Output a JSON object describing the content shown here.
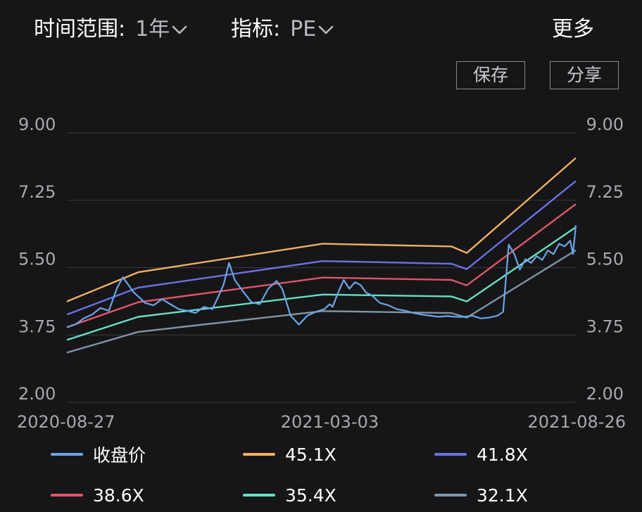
{
  "header": {
    "range_label": "时间范围:",
    "range_value": "1年",
    "metric_label": "指标:",
    "metric_value": "PE",
    "more_label": "更多"
  },
  "actions": {
    "save_label": "保存",
    "share_label": "分享"
  },
  "colors": {
    "background": "#161618",
    "grid": "#3a3a3d",
    "axis_text": "#a9a9ad",
    "close": "#6aa6e6",
    "band_45": "#f0b060",
    "band_41": "#6a72e0",
    "band_38": "#e0556a",
    "band_35": "#66e0c4",
    "band_32": "#7f96a8"
  },
  "chart_data": {
    "type": "line",
    "title": "",
    "xlabel": "",
    "ylabel": "",
    "ylim": [
      2.0,
      9.0
    ],
    "y_ticks": [
      "9.00",
      "7.25",
      "5.50",
      "3.75",
      "2.00"
    ],
    "x_ticks": [
      "2020-08-27",
      "2021-03-03",
      "2021-08-26"
    ],
    "x_range": [
      "2020-08-27",
      "2021-08-26"
    ],
    "grid": true,
    "legend_position": "bottom",
    "bands": [
      {
        "name": "45.1X",
        "color_key": "band_45",
        "x": [
          "2020-08-27",
          "2020-10-17",
          "2021-02-26",
          "2021-05-29",
          "2021-06-09",
          "2021-08-26"
        ],
        "y": [
          4.62,
          5.38,
          6.12,
          6.05,
          5.88,
          8.35
        ]
      },
      {
        "name": "41.8X",
        "color_key": "band_41",
        "x": [
          "2020-08-27",
          "2020-10-17",
          "2021-02-26",
          "2021-05-29",
          "2021-06-09",
          "2021-08-26"
        ],
        "y": [
          4.28,
          4.98,
          5.67,
          5.6,
          5.46,
          7.75
        ]
      },
      {
        "name": "38.6X",
        "color_key": "band_38",
        "x": [
          "2020-08-27",
          "2020-10-17",
          "2021-02-26",
          "2021-05-29",
          "2021-06-09",
          "2021-08-26"
        ],
        "y": [
          3.95,
          4.6,
          5.24,
          5.18,
          5.04,
          7.15
        ]
      },
      {
        "name": "35.4X",
        "color_key": "band_35",
        "x": [
          "2020-08-27",
          "2020-10-17",
          "2021-02-26",
          "2021-05-29",
          "2021-06-09",
          "2021-08-26"
        ],
        "y": [
          3.62,
          4.22,
          4.8,
          4.75,
          4.62,
          6.55
        ]
      },
      {
        "name": "32.1X",
        "color_key": "band_32",
        "x": [
          "2020-08-27",
          "2020-10-17",
          "2021-02-26",
          "2021-05-29",
          "2021-06-09",
          "2021-08-26"
        ],
        "y": [
          3.29,
          3.83,
          4.37,
          4.32,
          4.2,
          5.95
        ]
      }
    ],
    "close_series": {
      "name": "收盘价",
      "color_key": "close",
      "x": [
        "2020-08-27",
        "2020-09-02",
        "2020-09-08",
        "2020-09-14",
        "2020-09-20",
        "2020-09-26",
        "2020-10-02",
        "2020-10-06",
        "2020-10-10",
        "2020-10-14",
        "2020-10-18",
        "2020-10-22",
        "2020-10-28",
        "2020-11-03",
        "2020-11-09",
        "2020-11-15",
        "2020-11-21",
        "2020-11-27",
        "2020-12-03",
        "2020-12-09",
        "2020-12-13",
        "2020-12-17",
        "2020-12-21",
        "2020-12-25",
        "2020-12-31",
        "2021-01-06",
        "2021-01-12",
        "2021-01-18",
        "2021-01-24",
        "2021-01-28",
        "2021-02-03",
        "2021-02-09",
        "2021-02-15",
        "2021-02-21",
        "2021-02-27",
        "2021-03-03",
        "2021-03-05",
        "2021-03-09",
        "2021-03-13",
        "2021-03-17",
        "2021-03-21",
        "2021-03-25",
        "2021-03-29",
        "2021-04-02",
        "2021-04-08",
        "2021-04-14",
        "2021-04-20",
        "2021-04-26",
        "2021-05-02",
        "2021-05-08",
        "2021-05-14",
        "2021-05-20",
        "2021-05-26",
        "2021-06-01",
        "2021-06-07",
        "2021-06-13",
        "2021-06-19",
        "2021-06-25",
        "2021-07-01",
        "2021-07-05",
        "2021-07-07",
        "2021-07-09",
        "2021-07-13",
        "2021-07-17",
        "2021-07-21",
        "2021-07-25",
        "2021-07-29",
        "2021-08-02",
        "2021-08-06",
        "2021-08-10",
        "2021-08-14",
        "2021-08-18",
        "2021-08-22",
        "2021-08-24",
        "2021-08-26"
      ],
      "y": [
        3.95,
        4.02,
        4.18,
        4.28,
        4.45,
        4.38,
        4.98,
        5.25,
        5.05,
        4.85,
        4.72,
        4.58,
        4.52,
        4.68,
        4.55,
        4.42,
        4.38,
        4.32,
        4.48,
        4.42,
        4.72,
        5.05,
        5.62,
        5.18,
        4.88,
        4.6,
        4.55,
        4.95,
        5.15,
        4.95,
        4.25,
        4.02,
        4.25,
        4.35,
        4.42,
        4.55,
        4.48,
        4.85,
        5.18,
        4.95,
        5.12,
        5.05,
        4.85,
        4.78,
        4.58,
        4.52,
        4.42,
        4.38,
        4.32,
        4.28,
        4.25,
        4.22,
        4.24,
        4.22,
        4.22,
        4.25,
        4.18,
        4.2,
        4.25,
        4.35,
        5.2,
        6.1,
        5.85,
        5.45,
        5.72,
        5.62,
        5.8,
        5.7,
        5.95,
        5.85,
        6.12,
        6.05,
        6.2,
        5.85,
        6.6
      ]
    }
  }
}
